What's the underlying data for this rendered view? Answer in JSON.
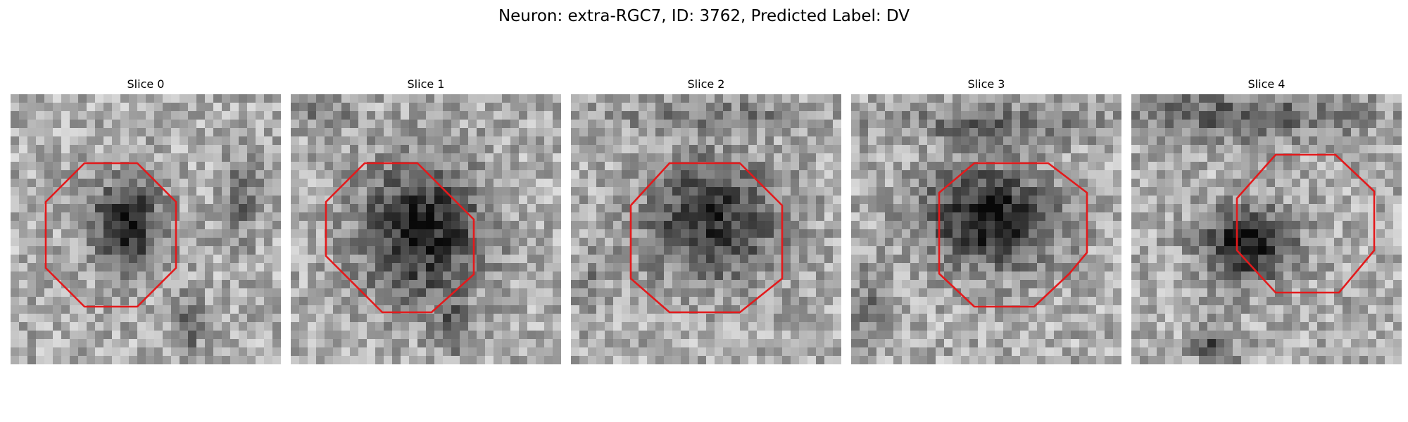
{
  "figure": {
    "title": "Neuron: extra-RGC7, ID: 3762, Predicted Label: DV",
    "roi_color": "#e31a1c",
    "colormap": "grayscale",
    "panels": [
      {
        "title": "Slice 0"
      },
      {
        "title": "Slice 1"
      },
      {
        "title": "Slice 2"
      },
      {
        "title": "Slice 3"
      },
      {
        "title": "Slice 4"
      }
    ]
  }
}
